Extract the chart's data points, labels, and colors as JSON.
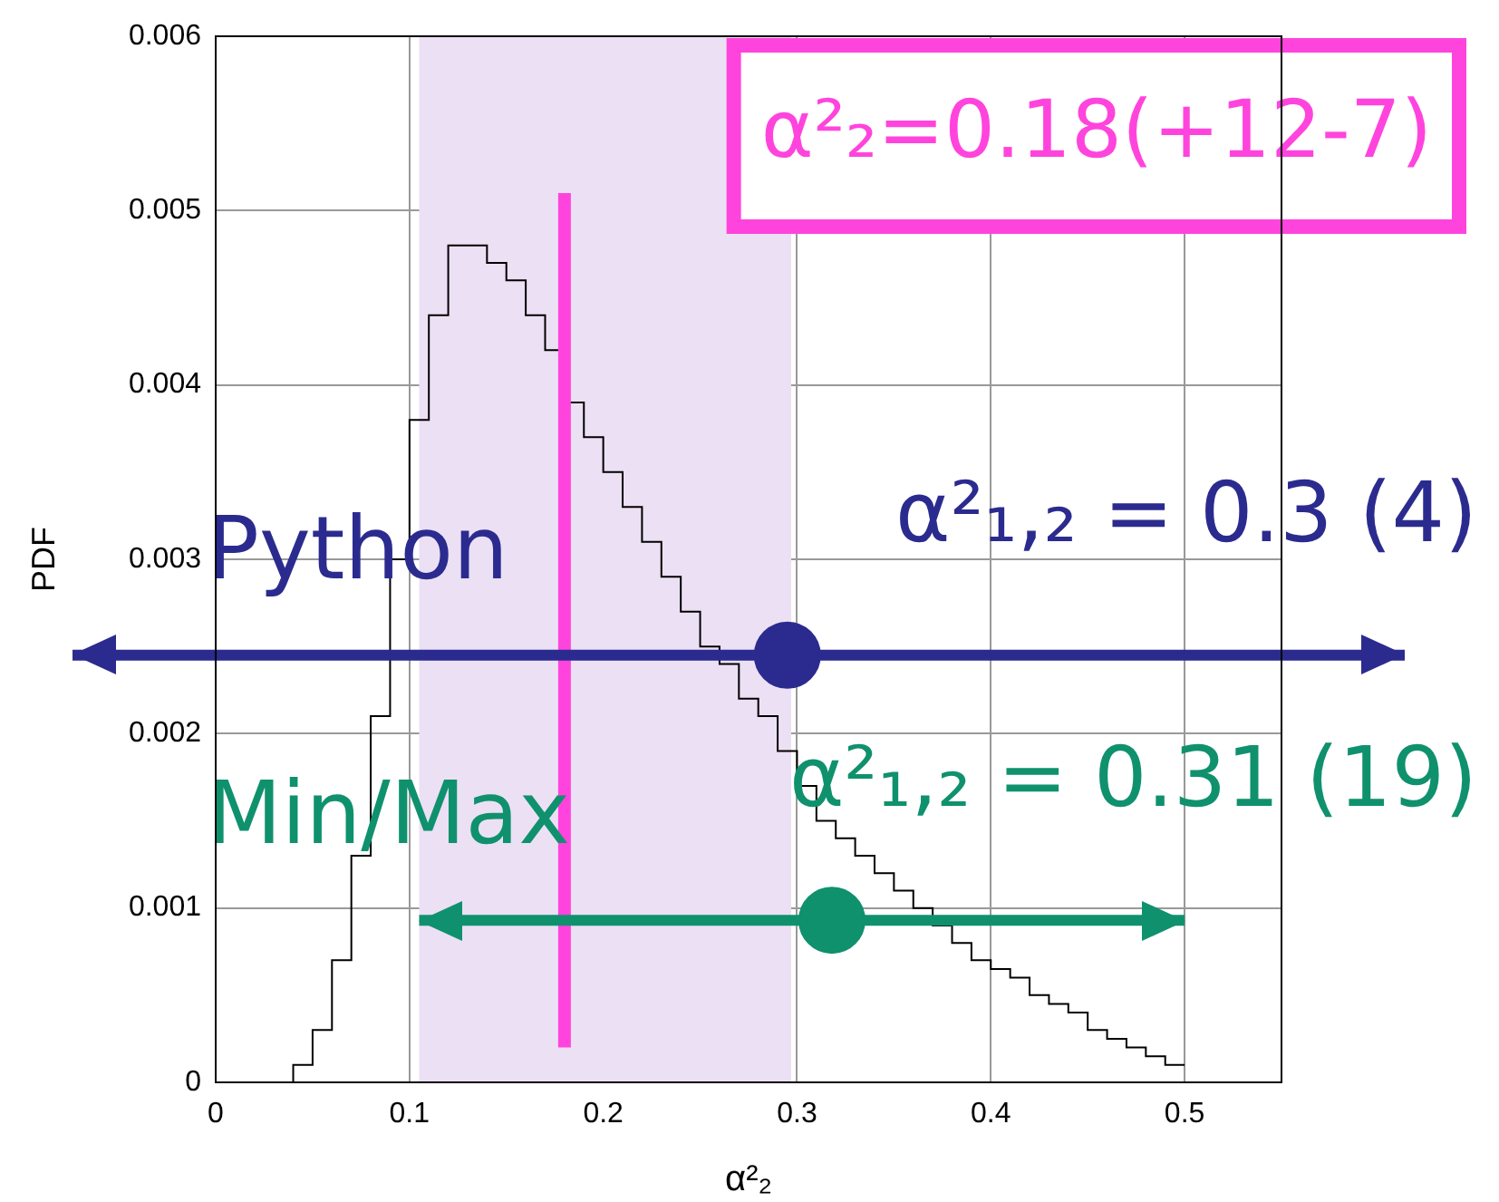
{
  "chart_data": {
    "type": "histogram",
    "xlabel": "α²₂",
    "ylabel": "PDF",
    "bins": [
      0.03,
      0.04,
      0.05,
      0.06,
      0.07,
      0.08,
      0.09,
      0.1,
      0.11,
      0.12,
      0.13,
      0.14,
      0.15,
      0.16,
      0.17,
      0.18,
      0.19,
      0.2,
      0.21,
      0.22,
      0.23,
      0.24,
      0.25,
      0.26,
      0.27,
      0.28,
      0.29,
      0.3,
      0.31,
      0.32,
      0.33,
      0.34,
      0.35,
      0.36,
      0.37,
      0.38,
      0.39,
      0.4,
      0.41,
      0.42,
      0.43,
      0.44,
      0.45,
      0.46,
      0.47,
      0.48,
      0.49,
      0.5
    ],
    "values": [
      0,
      0.0001,
      0.0003,
      0.0007,
      0.0013,
      0.0021,
      0.003,
      0.0038,
      0.0044,
      0.0048,
      0.0048,
      0.0047,
      0.0046,
      0.0044,
      0.0042,
      0.0039,
      0.0037,
      0.0035,
      0.0033,
      0.0031,
      0.0029,
      0.0027,
      0.0025,
      0.0024,
      0.0022,
      0.0021,
      0.0019,
      0.0017,
      0.0015,
      0.0014,
      0.0013,
      0.0012,
      0.0011,
      0.001,
      0.0009,
      0.0008,
      0.0007,
      0.00065,
      0.0006,
      0.0005,
      0.00045,
      0.0004,
      0.0003,
      0.00025,
      0.0002,
      0.00015,
      0.0001
    ],
    "color": "#000000",
    "series": [
      {
        "type": "scatter",
        "name": "Python",
        "color": "#2b2b8f",
        "x": [
          0.295
        ],
        "values": [
          0.00245
        ]
      },
      {
        "type": "scatter",
        "name": "Min/Max",
        "color": "#10916e",
        "x": [
          0.318
        ],
        "values": [
          0.00093
        ],
        "xerrors": [
          [
            0.105,
            0.5
          ]
        ]
      }
    ],
    "marker": "circle",
    "annotations": [
      "α²₁,₂ = 0.3 (4)",
      "α²₁,₂ = 0.31 (19)"
    ],
    "ref_lines": [
      {
        "axis": "x",
        "value": 0.18,
        "label": "α²₂=0.18(+12-7)",
        "color": "#ff44dd"
      },
      {
        "axis": "y",
        "value": 0.00245,
        "color": "#2b2b8f"
      }
    ],
    "bands": [
      {
        "axis": "x",
        "from": 0.105,
        "to": 0.297,
        "color": "#ece0f5"
      }
    ],
    "xlim": [
      0,
      0.55
    ],
    "xticks": [
      0,
      0.1,
      0.2,
      0.3,
      0.4,
      0.5
    ],
    "ylim": [
      0,
      0.006
    ],
    "yticks": [
      0,
      0.001,
      0.002,
      0.003,
      0.004,
      0.005,
      0.006
    ],
    "grid": true,
    "legend": false
  }
}
